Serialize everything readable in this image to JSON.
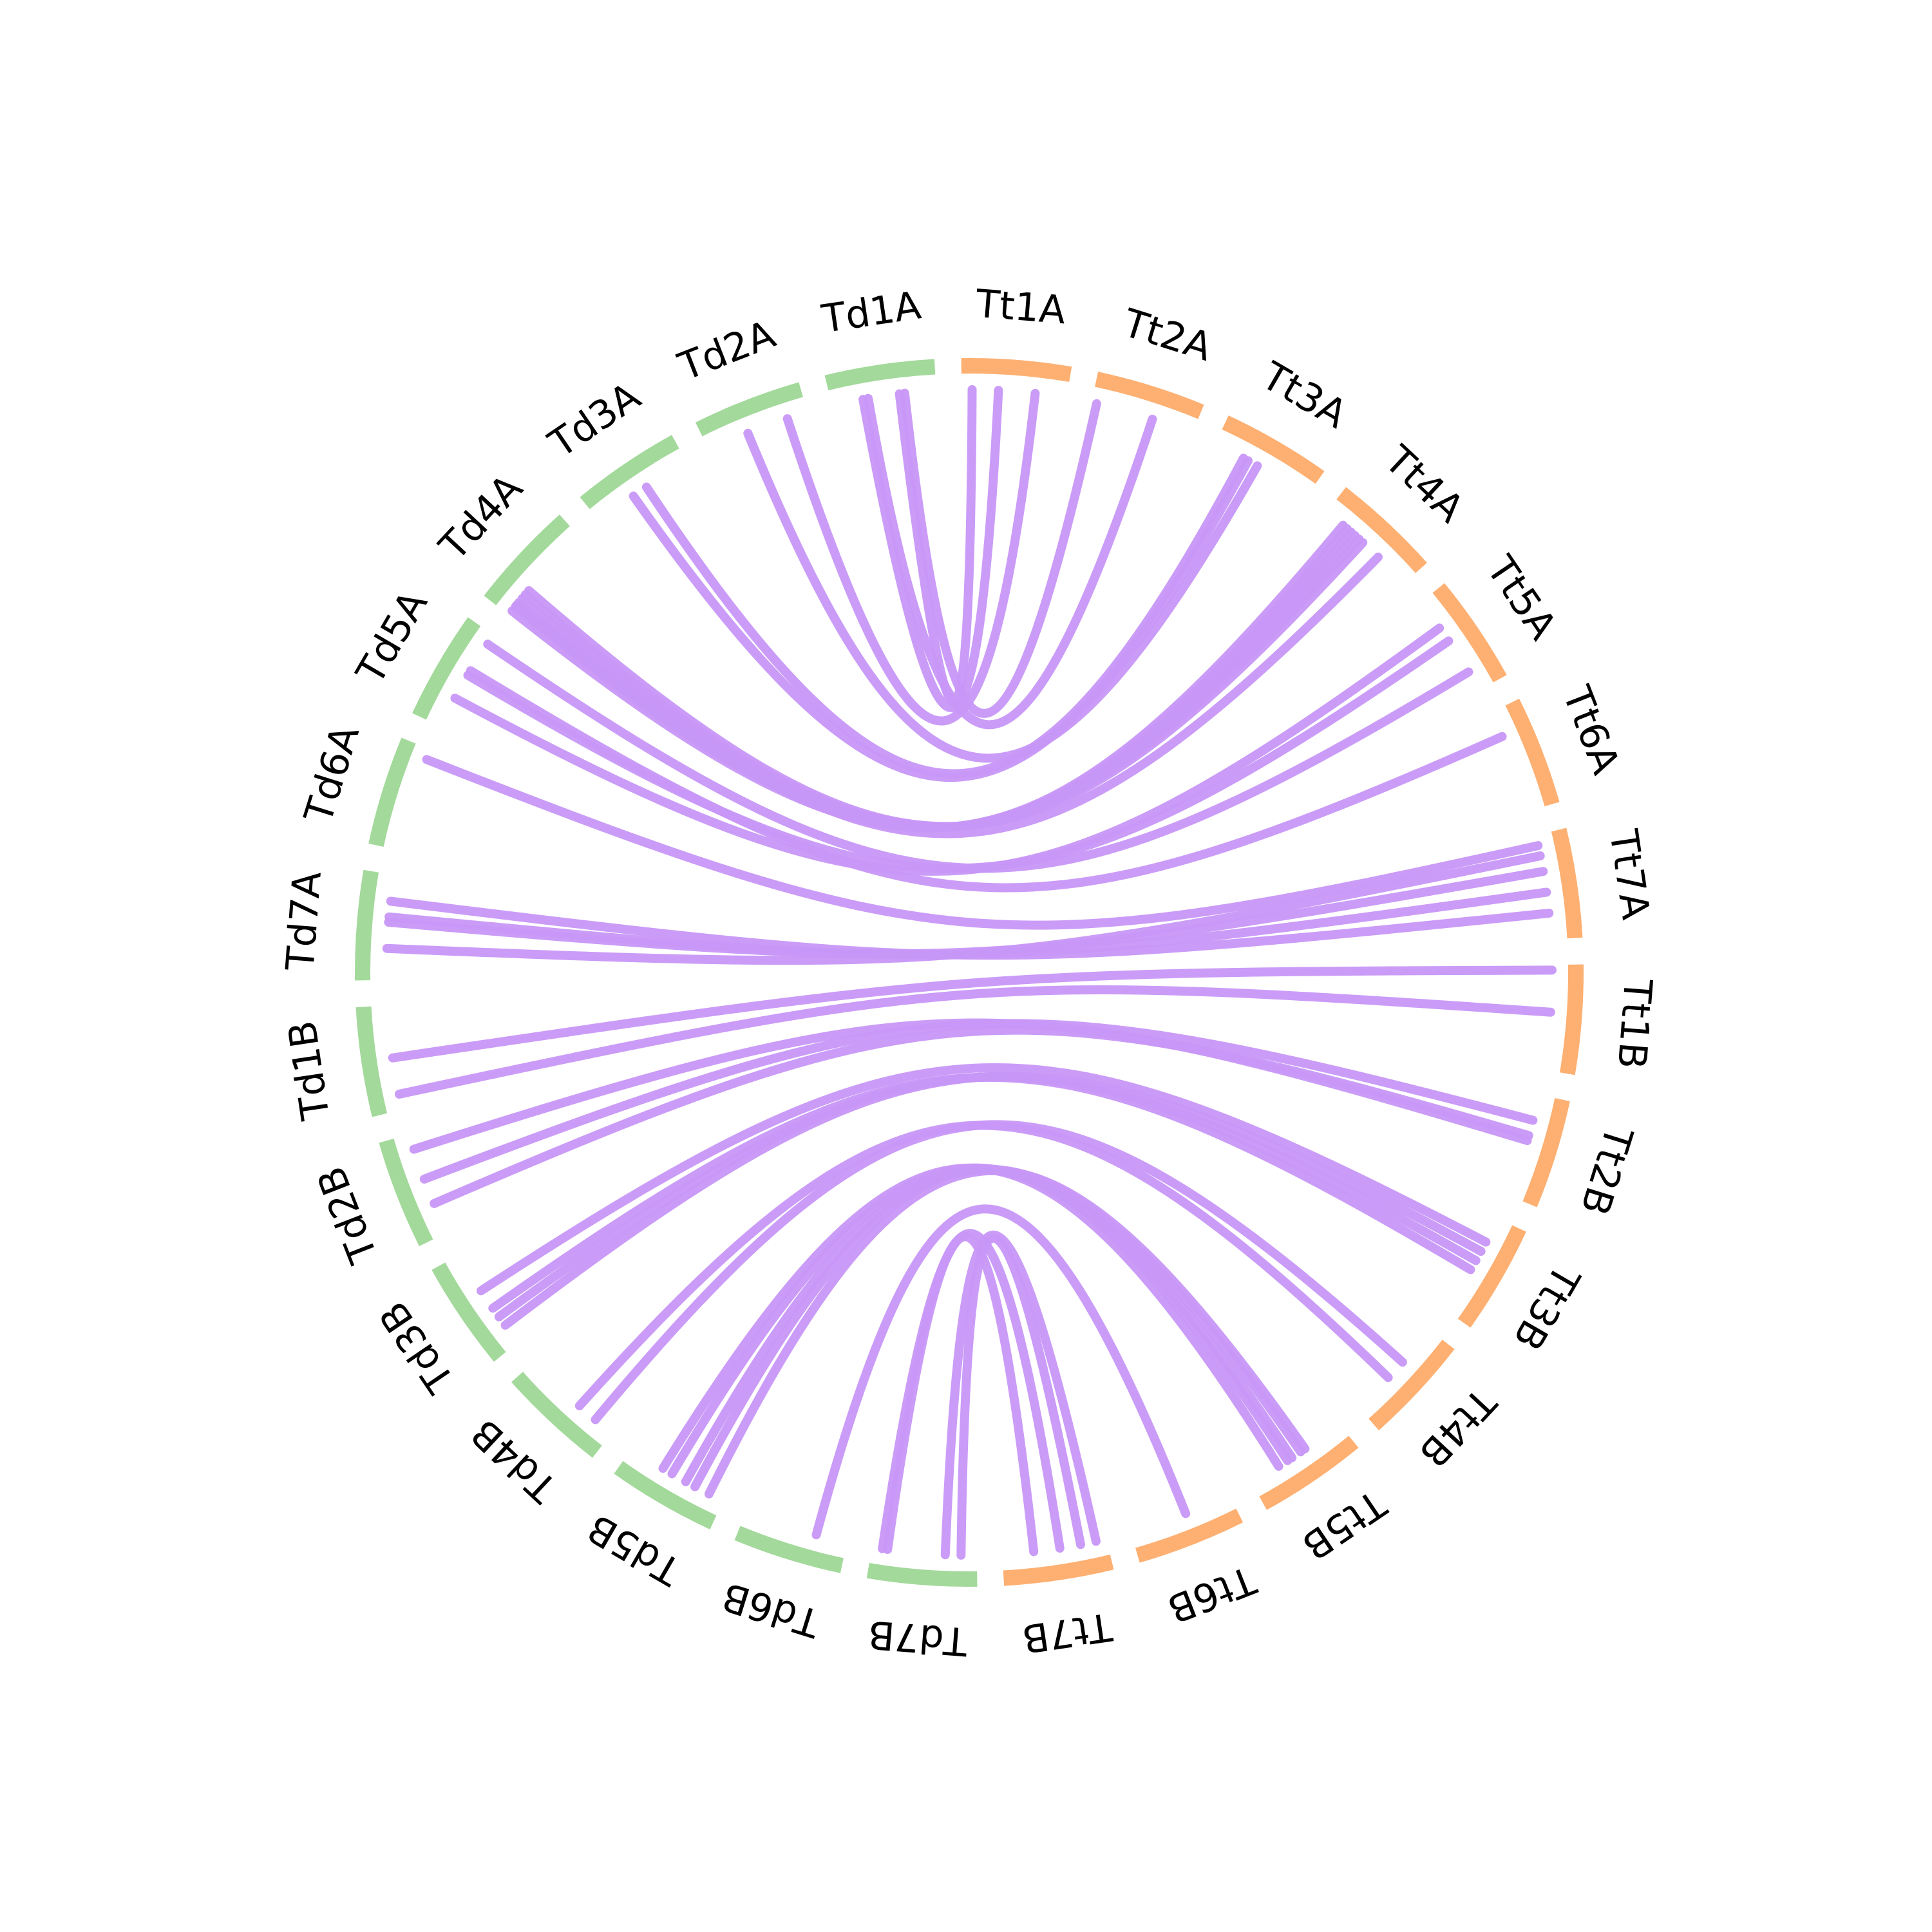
{
  "colors": {
    "group_td": "#a3d99b",
    "group_tt": "#fdb072",
    "links": "#c797f7",
    "text": "#000000"
  },
  "segments": [
    {
      "label": "Td1A",
      "group": "td"
    },
    {
      "label": "Td2A",
      "group": "td"
    },
    {
      "label": "Td3A",
      "group": "td"
    },
    {
      "label": "Td4A",
      "group": "td"
    },
    {
      "label": "Td5A",
      "group": "td"
    },
    {
      "label": "Td6A",
      "group": "td"
    },
    {
      "label": "Td7A",
      "group": "td"
    },
    {
      "label": "Td1B",
      "group": "td"
    },
    {
      "label": "Td2B",
      "group": "td"
    },
    {
      "label": "Td3B",
      "group": "td"
    },
    {
      "label": "Td4B",
      "group": "td"
    },
    {
      "label": "Td5B",
      "group": "td"
    },
    {
      "label": "Td6B",
      "group": "td"
    },
    {
      "label": "Td7B",
      "group": "td"
    },
    {
      "label": "Tt7B",
      "group": "tt"
    },
    {
      "label": "Tt6B",
      "group": "tt"
    },
    {
      "label": "Tt5B",
      "group": "tt"
    },
    {
      "label": "Tt4B",
      "group": "tt"
    },
    {
      "label": "Tt3B",
      "group": "tt"
    },
    {
      "label": "Tt2B",
      "group": "tt"
    },
    {
      "label": "Tt1B",
      "group": "tt"
    },
    {
      "label": "Tt7A",
      "group": "tt"
    },
    {
      "label": "Tt6A",
      "group": "tt"
    },
    {
      "label": "Tt5A",
      "group": "tt"
    },
    {
      "label": "Tt4A",
      "group": "tt"
    },
    {
      "label": "Tt3A",
      "group": "tt"
    },
    {
      "label": "Tt2A",
      "group": "tt"
    },
    {
      "label": "Tt1A",
      "group": "tt"
    }
  ],
  "links": [
    [
      "Td1A",
      "Tt1A",
      0.65,
      0.1
    ],
    [
      "Td1A",
      "Tt1A",
      0.3,
      0.35
    ],
    [
      "Td1A",
      "Tt2A",
      0.7,
      0.05
    ],
    [
      "Td1A",
      "Tt2A",
      0.35,
      0.6
    ],
    [
      "Td2A",
      "Tt3A",
      0.4,
      0.45
    ],
    [
      "Td2A",
      "Tt1A",
      0.8,
      0.7
    ],
    [
      "Td3A",
      "Tt3A",
      0.4,
      0.35
    ],
    [
      "Td3A",
      "Tt3A",
      0.55,
      0.3
    ],
    [
      "Td4A",
      "Tt4A",
      0.05,
      0.2
    ],
    [
      "Td4A",
      "Tt4A",
      0.1,
      0.25
    ],
    [
      "Td4A",
      "Tt4A",
      0.15,
      0.3
    ],
    [
      "Td4A",
      "Tt4A",
      0.2,
      0.35
    ],
    [
      "Td4A",
      "Tt4A",
      0.25,
      0.4
    ],
    [
      "Td4A",
      "Tt4A",
      0.3,
      0.45
    ],
    [
      "Td4A",
      "Tt4A",
      0.12,
      0.65
    ],
    [
      "Td5A",
      "Tt5A",
      0.3,
      0.3
    ],
    [
      "Td5A",
      "Tt5A",
      0.55,
      0.45
    ],
    [
      "Td5A",
      "Tt6A",
      0.6,
      0.25
    ],
    [
      "Td5A",
      "Tt5A",
      0.9,
      0.8
    ],
    [
      "Td6A",
      "Tt7A",
      0.9,
      0.1
    ],
    [
      "Td7A",
      "Tt7A",
      0.3,
      0.2
    ],
    [
      "Td7A",
      "Tt7A",
      0.55,
      0.35
    ],
    [
      "Td7A",
      "Tt7A",
      0.6,
      0.55
    ],
    [
      "Td7A",
      "Tt7A",
      0.75,
      0.75
    ],
    [
      "Td1B",
      "Tt1B",
      0.15,
      0.45
    ],
    [
      "Td1B",
      "Tt1B",
      0.5,
      0.05
    ],
    [
      "Td2B",
      "Tt2B",
      0.3,
      0.4
    ],
    [
      "Td2B",
      "Tt2B",
      0.55,
      0.25
    ],
    [
      "Td2B",
      "Tt2B",
      0.85,
      0.45
    ],
    [
      "Td3B",
      "Tt3B",
      0.2,
      0.35
    ],
    [
      "Td3B",
      "Tt3B",
      0.3,
      0.45
    ],
    [
      "Td3B",
      "Tt3B",
      0.4,
      0.55
    ],
    [
      "Td3B",
      "Tt3B",
      0.6,
      0.25
    ],
    [
      "Td4B",
      "Tt4B",
      0.2,
      0.4
    ],
    [
      "Td4B",
      "Tt4B",
      0.4,
      0.6
    ],
    [
      "Td5B",
      "Tt5B",
      0.15,
      0.4
    ],
    [
      "Td5B",
      "Tt5B",
      0.3,
      0.45
    ],
    [
      "Td5B",
      "Tt5B",
      0.4,
      0.55
    ],
    [
      "Td5B",
      "Tt5B",
      0.55,
      0.6
    ],
    [
      "Td5B",
      "Tt5B",
      0.65,
      0.7
    ],
    [
      "Td6B",
      "Tt6B",
      0.3,
      0.45
    ],
    [
      "Td7B",
      "Tt7B",
      0.15,
      0.25
    ],
    [
      "Td7B",
      "Tt7B",
      0.3,
      0.1
    ],
    [
      "Td7B",
      "Tt7B",
      0.9,
      0.45
    ],
    [
      "Td7B",
      "Tt7B",
      0.85,
      0.7
    ]
  ]
}
